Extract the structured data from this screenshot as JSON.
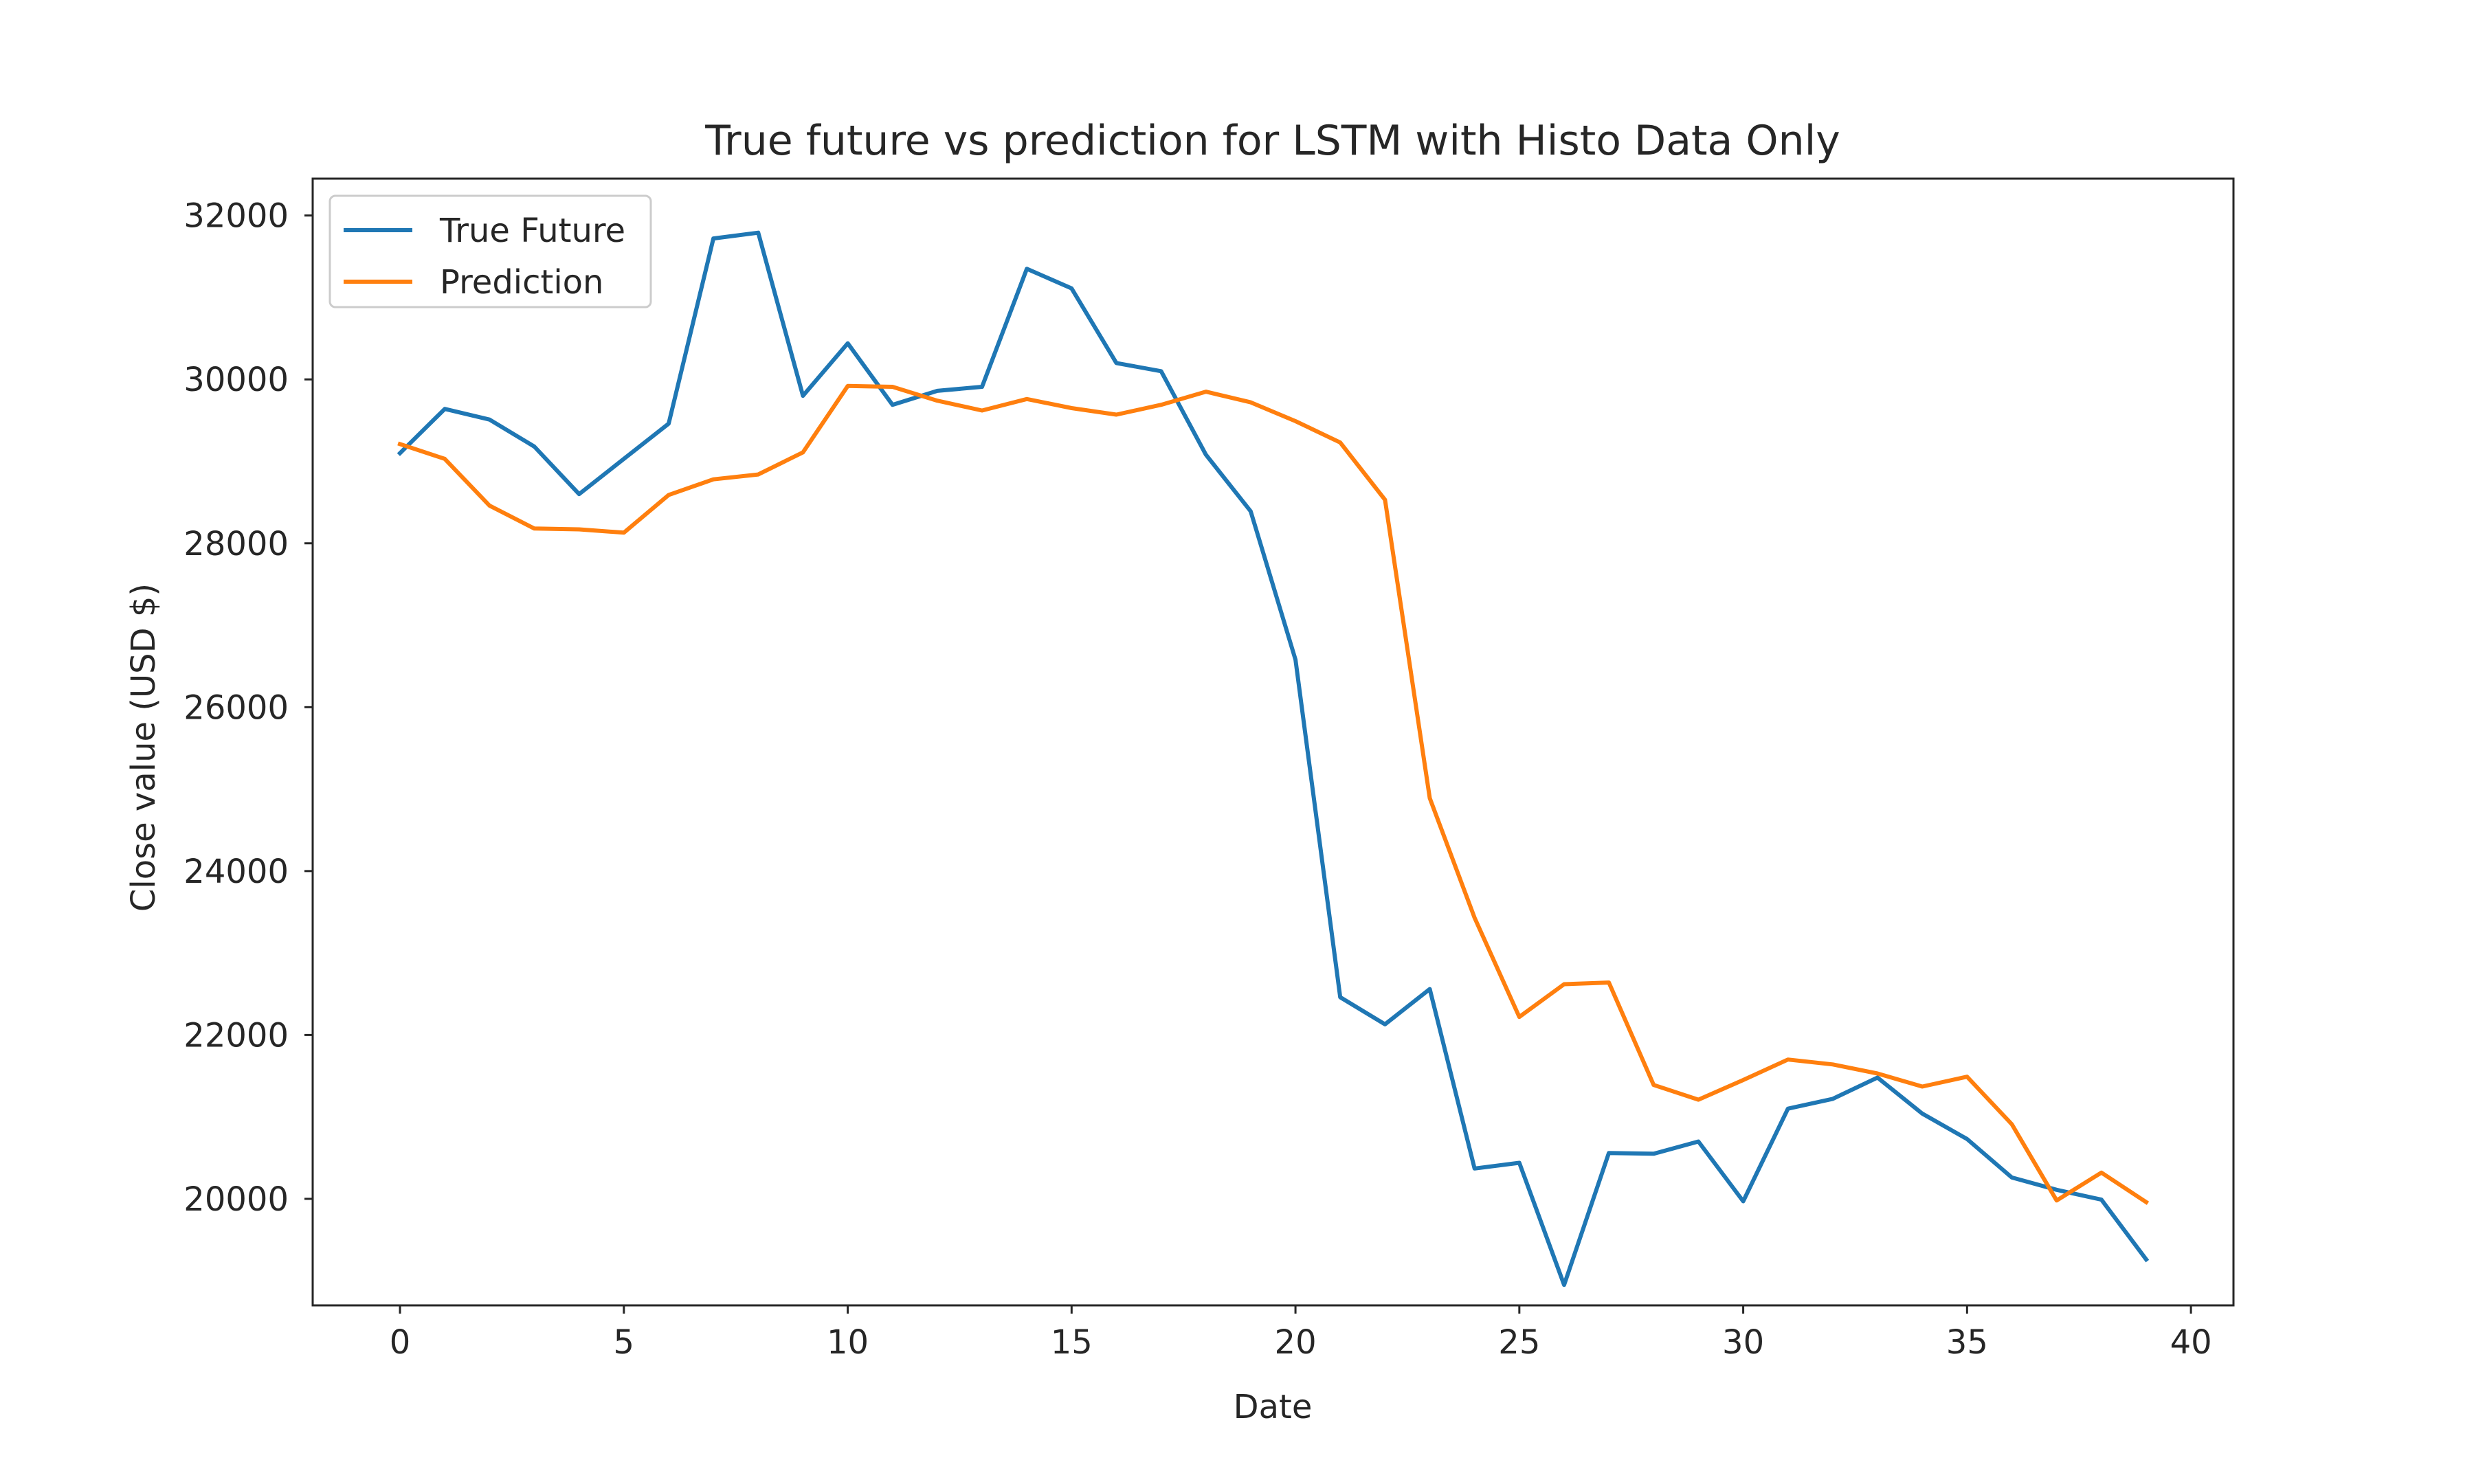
{
  "chart_data": {
    "type": "line",
    "title": "True future vs prediction for LSTM with Histo Data Only",
    "xlabel": "Date",
    "ylabel": "Close value (USD $)",
    "xlim": [
      -1.95,
      40.95
    ],
    "ylim": [
      18700,
      32450
    ],
    "xticks": [
      0,
      5,
      10,
      15,
      20,
      25,
      30,
      35,
      40
    ],
    "yticks": [
      20000,
      22000,
      24000,
      26000,
      28000,
      30000,
      32000
    ],
    "grid": false,
    "legend_position": "top-left",
    "x": [
      0,
      1,
      2,
      3,
      4,
      5,
      6,
      7,
      8,
      9,
      10,
      11,
      12,
      13,
      14,
      15,
      16,
      17,
      18,
      19,
      20,
      21,
      22,
      23,
      24,
      25,
      26,
      27,
      28,
      29,
      30,
      31,
      32,
      33,
      34,
      35,
      36,
      37,
      38,
      39
    ],
    "series": [
      {
        "name": "True Future",
        "color": "#1f77b4",
        "values": [
          29100,
          29640,
          29510,
          29180,
          28600,
          29030,
          29460,
          31720,
          31790,
          29800,
          30440,
          29690,
          29860,
          29910,
          31350,
          31110,
          30200,
          30100,
          29080,
          28390,
          26580,
          22460,
          22130,
          22560,
          20370,
          20440,
          18950,
          20560,
          20550,
          20700,
          19970,
          21100,
          21220,
          21480,
          21040,
          20730,
          20260,
          20110,
          19990,
          19260
        ]
      },
      {
        "name": "Prediction",
        "color": "#ff7f0e",
        "values": [
          29210,
          29030,
          28460,
          28180,
          28170,
          28130,
          28590,
          28780,
          28840,
          29110,
          29920,
          29910,
          29740,
          29620,
          29760,
          29650,
          29570,
          29690,
          29850,
          29720,
          29490,
          29230,
          28530,
          24890,
          23430,
          22220,
          22620,
          22640,
          21390,
          21210,
          21450,
          21700,
          21640,
          21530,
          21370,
          21490,
          20910,
          19980,
          20320,
          19960
        ]
      }
    ]
  }
}
